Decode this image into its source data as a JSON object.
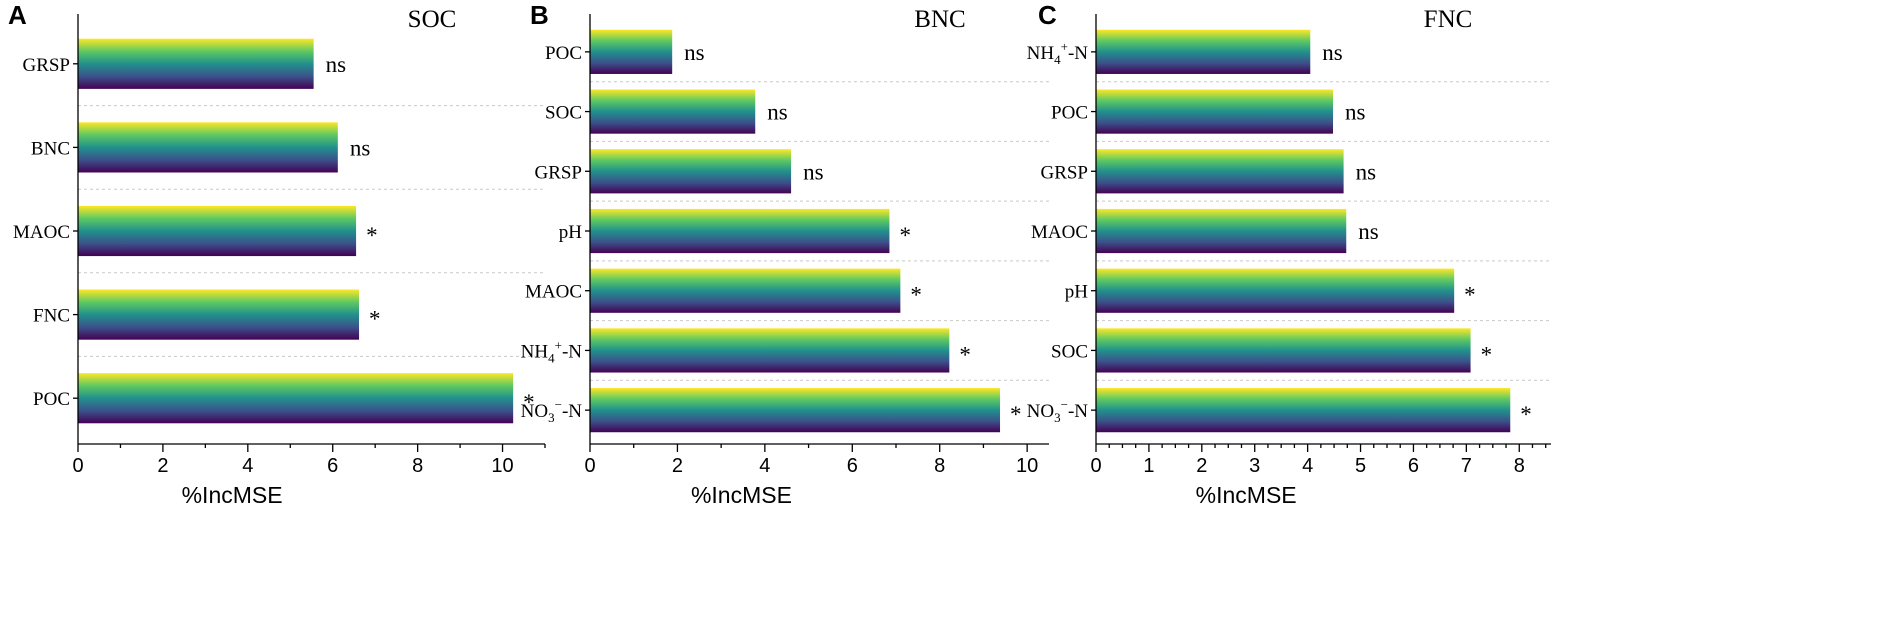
{
  "chart_data": [
    {
      "type": "bar",
      "panel": "A",
      "title": "SOC",
      "xlabel": "%IncMSE",
      "xlim": [
        0,
        11
      ],
      "xticks": [
        0,
        2,
        4,
        6,
        8,
        10
      ],
      "minor_ticks": true,
      "grid": true,
      "categories": [
        "GRSP",
        "BNC",
        "MAOC",
        "FNC",
        "POC"
      ],
      "values": [
        5.55,
        6.12,
        6.55,
        6.62,
        10.25
      ],
      "significance": [
        "ns",
        "ns",
        "*",
        "*",
        "*"
      ]
    },
    {
      "type": "bar",
      "panel": "B",
      "title": "BNC",
      "xlabel": "%IncMSE",
      "xlim": [
        0,
        10.5
      ],
      "xticks": [
        0,
        2,
        4,
        6,
        8,
        10
      ],
      "minor_ticks": true,
      "grid": true,
      "categories": [
        "POC",
        "SOC",
        "GRSP",
        "pH",
        "MAOC",
        "NH4+-N",
        "NO3−-N"
      ],
      "category_display": [
        {
          "base": "POC"
        },
        {
          "base": "SOC"
        },
        {
          "base": "GRSP"
        },
        {
          "base": "pH"
        },
        {
          "base": "MAOC"
        },
        {
          "base": "NH",
          "sub": "4",
          "sup": "+",
          "rest": "-N"
        },
        {
          "base": "NO",
          "sub": "3",
          "sup": "−",
          "rest": "-N"
        }
      ],
      "values": [
        1.88,
        3.78,
        4.6,
        6.85,
        7.1,
        8.22,
        9.38
      ],
      "significance": [
        "ns",
        "ns",
        "ns",
        "*",
        "*",
        "*",
        "*"
      ]
    },
    {
      "type": "bar",
      "panel": "C",
      "title": "FNC",
      "xlabel": "%IncMSE",
      "xlim": [
        0,
        8.6
      ],
      "xticks": [
        0,
        1,
        2,
        3,
        4,
        5,
        6,
        7,
        8
      ],
      "minor_ticks": true,
      "grid": true,
      "categories": [
        "NH4+-N",
        "POC",
        "GRSP",
        "MAOC",
        "pH",
        "SOC",
        "NO3−-N"
      ],
      "category_display": [
        {
          "base": "NH",
          "sub": "4",
          "sup": "+",
          "rest": "-N"
        },
        {
          "base": "POC"
        },
        {
          "base": "GRSP"
        },
        {
          "base": "MAOC"
        },
        {
          "base": "pH"
        },
        {
          "base": "SOC"
        },
        {
          "base": "NO",
          "sub": "3",
          "sup": "−",
          "rest": "-N"
        }
      ],
      "values": [
        4.05,
        4.48,
        4.68,
        4.73,
        6.77,
        7.08,
        7.83
      ],
      "significance": [
        "ns",
        "ns",
        "ns",
        "ns",
        "*",
        "*",
        "*"
      ]
    }
  ],
  "bar_gradient": [
    "#fde725",
    "#5ec962",
    "#21918c",
    "#3b528b",
    "#440154"
  ]
}
